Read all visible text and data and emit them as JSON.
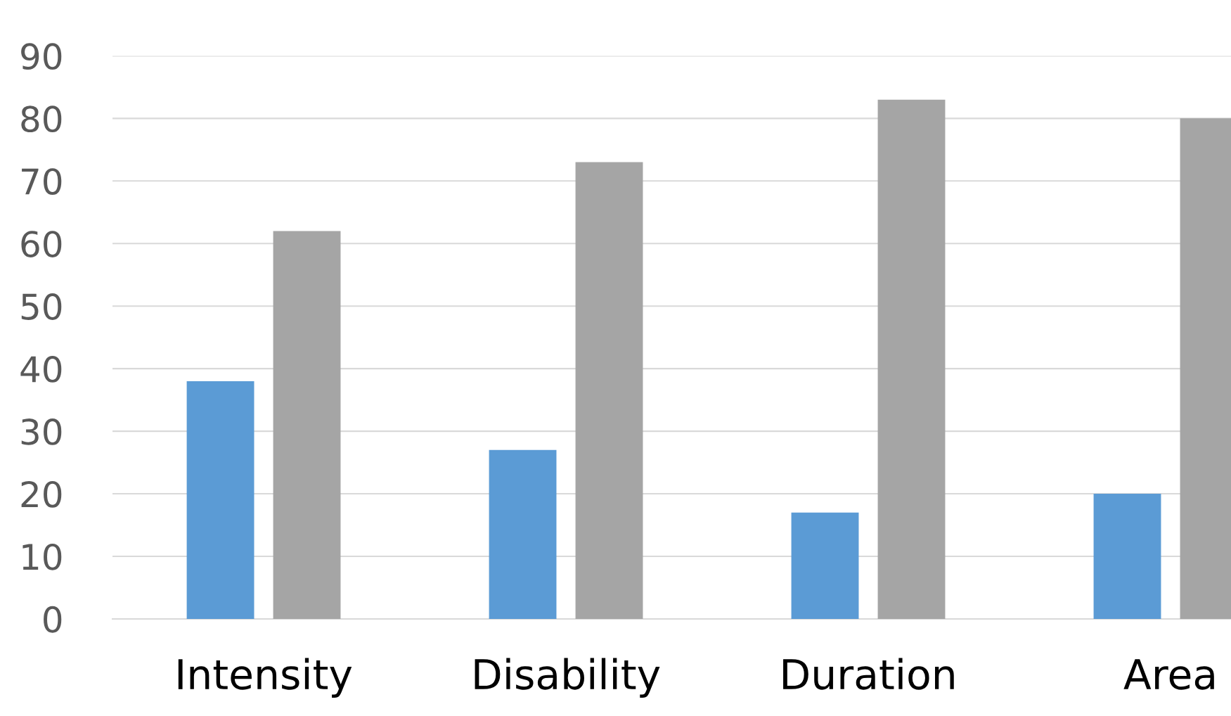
{
  "chart_data": {
    "type": "bar",
    "categories": [
      "Intensity",
      "Disability",
      "Duration",
      "Area"
    ],
    "series": [
      {
        "color": "#5b9bd5",
        "values": [
          38,
          27,
          17,
          20
        ]
      },
      {
        "color": "#a5a5a5",
        "values": [
          62,
          73,
          83,
          80
        ]
      }
    ],
    "ylim": [
      0,
      90
    ],
    "yticks": [
      0,
      10,
      20,
      30,
      40,
      50,
      60,
      70,
      80,
      90
    ],
    "grid": "y",
    "legend": false
  }
}
